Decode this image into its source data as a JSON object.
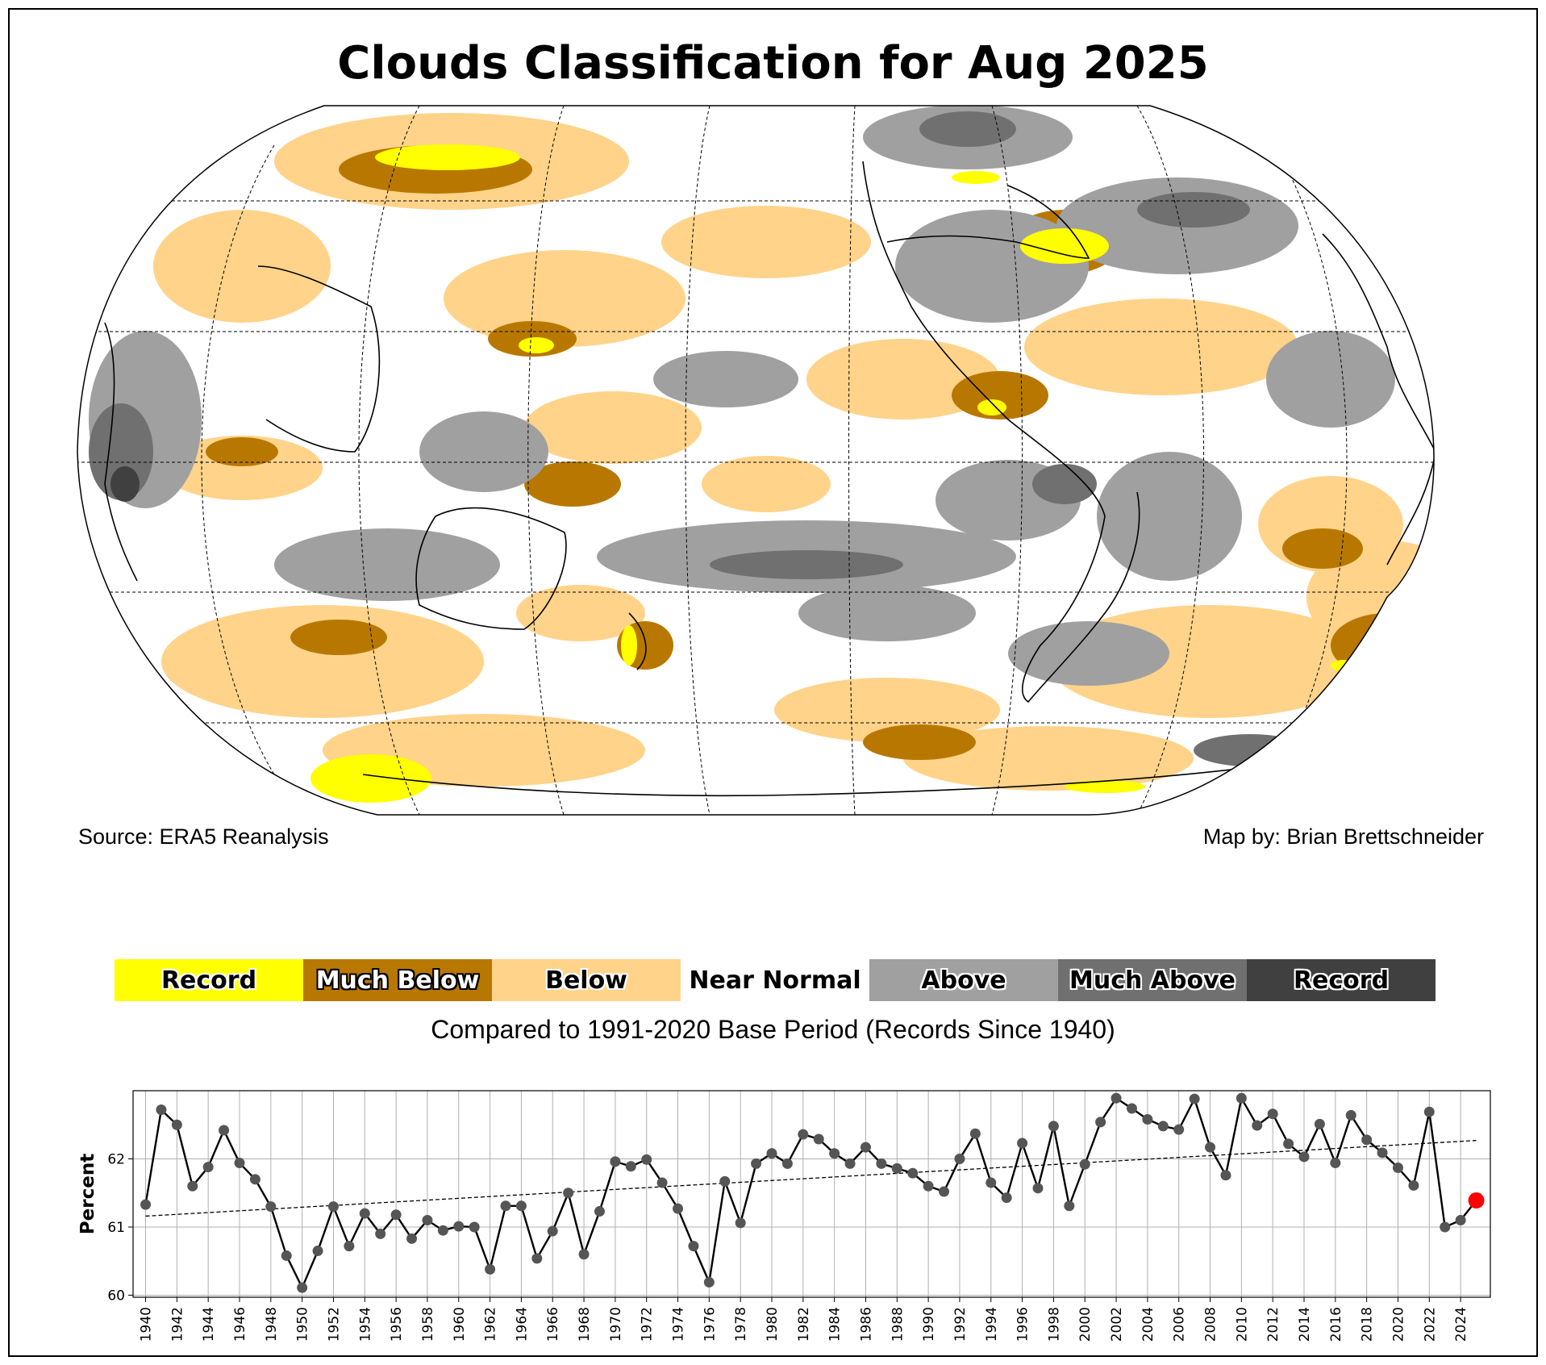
{
  "title": "Clouds Classification for Aug 2025",
  "source": "Source: ERA5 Reanalysis",
  "credit": "Map by: Brian Brettschneider",
  "legend": {
    "items": [
      {
        "label": "Record",
        "color": "#ffff00",
        "halo": "white"
      },
      {
        "label": "Much Below",
        "color": "#b87800",
        "halo": "white"
      },
      {
        "label": "Below",
        "color": "#ffd38a",
        "halo": "white"
      },
      {
        "label": "Near Normal",
        "color": "#ffffff",
        "halo": "none"
      },
      {
        "label": "Above",
        "color": "#a0a0a0",
        "halo": "white"
      },
      {
        "label": "Much Above",
        "color": "#707070",
        "halo": "white"
      },
      {
        "label": "Record",
        "color": "#404040",
        "halo": "white"
      }
    ],
    "note": "Compared to 1991-2020 Base Period   (Records Since 1940)"
  },
  "map": {
    "projection": "Robinson",
    "palette": {
      "record_low": "#ffff00",
      "much_below": "#b87800",
      "below": "#ffd38a",
      "normal": "#ffffff",
      "above": "#a0a0a0",
      "much_above": "#707070",
      "record_high": "#404040"
    }
  },
  "chart_data": {
    "type": "line",
    "ylabel": "Percent",
    "xlabel": "",
    "ylim": [
      59.97,
      63.0
    ],
    "xlim": [
      1939.2,
      2025.9
    ],
    "yticks": [
      60,
      61,
      62
    ],
    "xticks": [
      1940,
      1942,
      1944,
      1946,
      1948,
      1950,
      1952,
      1954,
      1956,
      1958,
      1960,
      1962,
      1964,
      1966,
      1968,
      1970,
      1972,
      1974,
      1976,
      1978,
      1980,
      1982,
      1984,
      1986,
      1988,
      1990,
      1992,
      1994,
      1996,
      1998,
      2000,
      2002,
      2004,
      2006,
      2008,
      2010,
      2012,
      2014,
      2016,
      2018,
      2020,
      2022,
      2024
    ],
    "x": [
      1940,
      1941,
      1942,
      1943,
      1944,
      1945,
      1946,
      1947,
      1948,
      1949,
      1950,
      1951,
      1952,
      1953,
      1954,
      1955,
      1956,
      1957,
      1958,
      1959,
      1960,
      1961,
      1962,
      1963,
      1964,
      1965,
      1966,
      1967,
      1968,
      1969,
      1970,
      1971,
      1972,
      1973,
      1974,
      1975,
      1976,
      1977,
      1978,
      1979,
      1980,
      1981,
      1982,
      1983,
      1984,
      1985,
      1986,
      1987,
      1988,
      1989,
      1990,
      1991,
      1992,
      1993,
      1994,
      1995,
      1996,
      1997,
      1998,
      1999,
      2000,
      2001,
      2002,
      2003,
      2004,
      2005,
      2006,
      2007,
      2008,
      2009,
      2010,
      2011,
      2012,
      2013,
      2014,
      2015,
      2016,
      2017,
      2018,
      2019,
      2020,
      2021,
      2022,
      2023,
      2024,
      2025
    ],
    "values": [
      61.33,
      62.72,
      62.5,
      61.6,
      61.88,
      62.42,
      61.94,
      61.7,
      61.3,
      60.58,
      60.11,
      60.65,
      61.3,
      60.72,
      61.2,
      60.9,
      61.18,
      60.83,
      61.1,
      60.95,
      61.01,
      61.0,
      60.38,
      61.31,
      61.31,
      60.54,
      60.94,
      61.5,
      60.6,
      61.23,
      61.96,
      61.89,
      61.99,
      61.65,
      61.27,
      60.72,
      60.19,
      61.67,
      61.06,
      61.93,
      62.08,
      61.93,
      62.36,
      62.29,
      62.08,
      61.93,
      62.17,
      61.93,
      61.86,
      61.79,
      61.6,
      61.52,
      62.0,
      62.37,
      61.65,
      61.43,
      62.23,
      61.57,
      62.48,
      61.31,
      61.92,
      62.54,
      62.89,
      62.74,
      62.58,
      62.48,
      62.43,
      62.88,
      62.17,
      61.76,
      62.89,
      62.49,
      62.66,
      62.22,
      62.03,
      62.51,
      61.94,
      62.64,
      62.28,
      62.09,
      61.87,
      61.61,
      62.69,
      61.0,
      61.1,
      61.39
    ],
    "trend": {
      "x": [
        1940,
        2025
      ],
      "y": [
        61.16,
        62.27
      ]
    },
    "highlight": {
      "year": 2025,
      "color": "#ff0000"
    }
  }
}
